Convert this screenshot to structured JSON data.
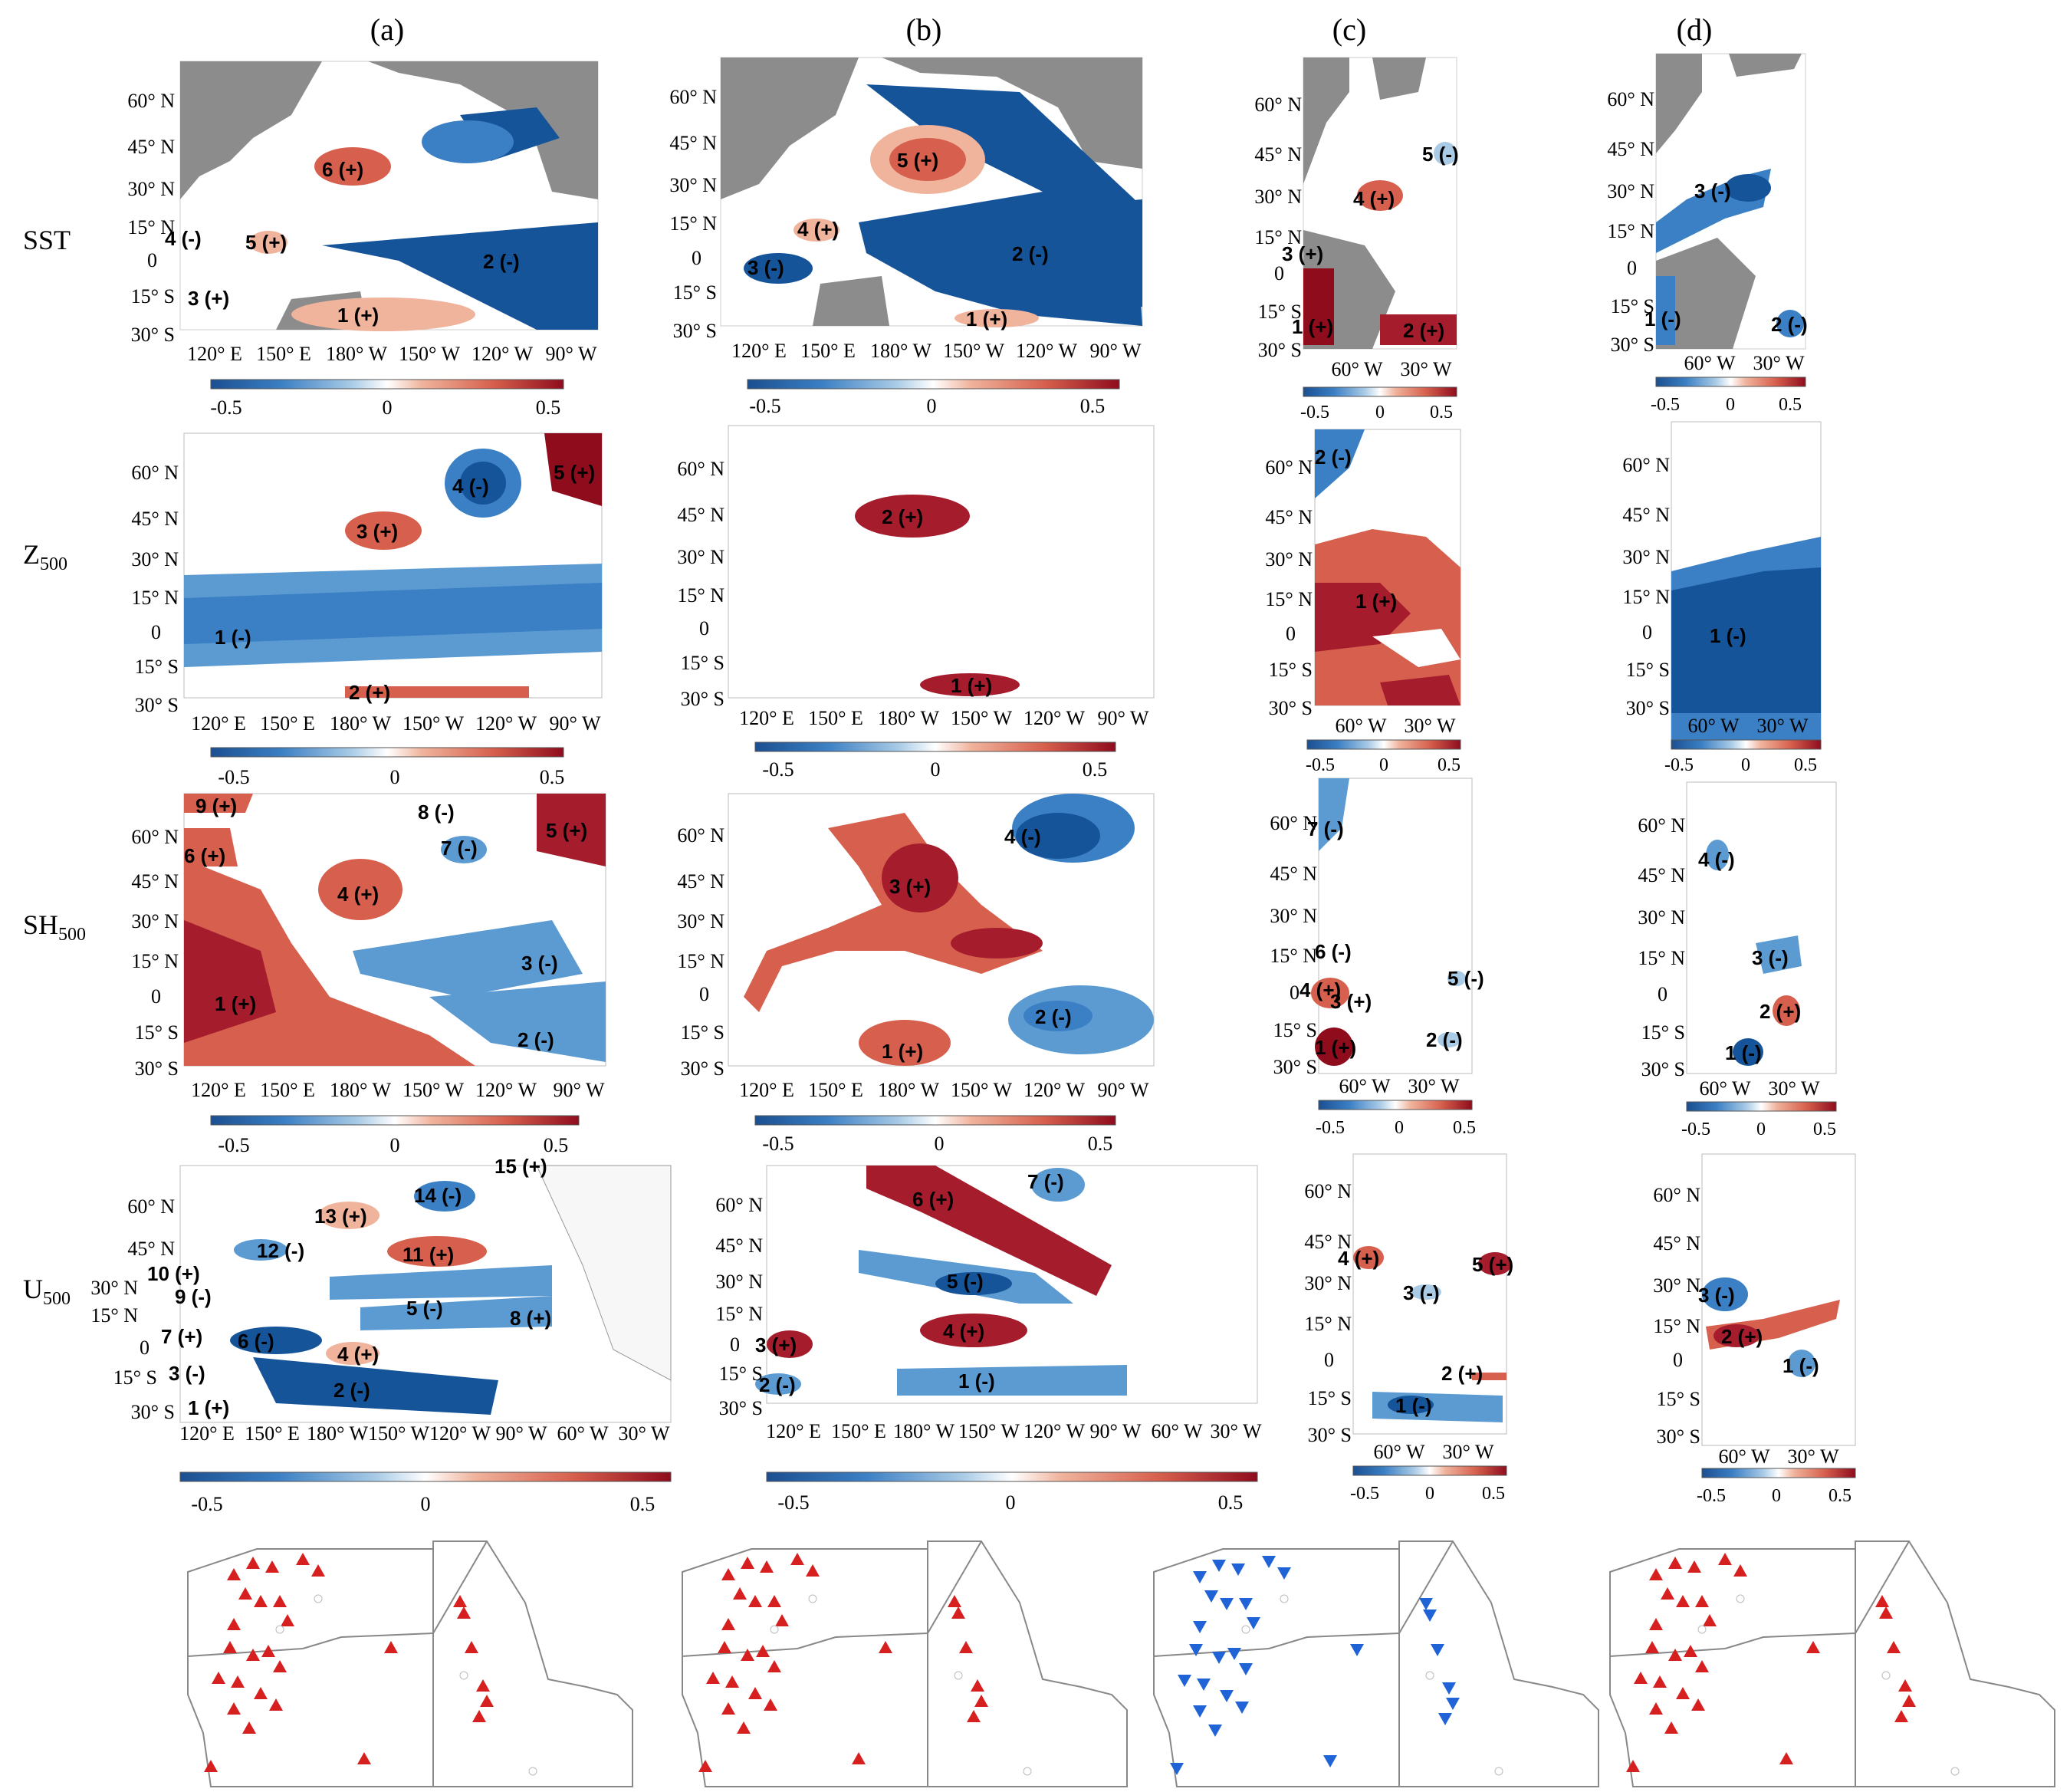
{
  "columns": [
    "(a)",
    "(b)",
    "(c)",
    "(d)"
  ],
  "rows": [
    {
      "main": "SST",
      "sub": ""
    },
    {
      "main": "Z",
      "sub": "500"
    },
    {
      "main": "SH",
      "sub": "500"
    },
    {
      "main": "U",
      "sub": "500"
    }
  ],
  "pacific_lat_labels": [
    "60° N",
    "45° N",
    "30° N",
    "15° N",
    "0",
    "15° S",
    "30° S"
  ],
  "atlantic_lat_labels": [
    "60° N",
    "45° N",
    "30° N",
    "15° N",
    "0",
    "15° S",
    "30° S"
  ],
  "pacific_lon_labels": [
    "120° E",
    "150° E",
    "180° W",
    "150° W",
    "120° W",
    "90° W"
  ],
  "pacific_lon_labels_u500": [
    "120° E",
    "150° E",
    "180° W",
    "150° W",
    "120° W",
    "90° W",
    "60° W",
    "30° W"
  ],
  "atlantic_lon_labels": [
    "60° W",
    "30° W"
  ],
  "colorbar": {
    "min": "-0.5",
    "mid": "0",
    "max": "0.5",
    "neg_color": "#1b4f91",
    "pos_color": "#8f0c1d"
  },
  "regions": {
    "a": {
      "sst": [
        "6 (+)",
        "5 (+)",
        "4 (-)",
        "3 (+)",
        "2 (-)",
        "1 (+)"
      ],
      "z500": [
        "5 (+)",
        "4 (-)",
        "3 (+)",
        "2 (+)",
        "1 (-)"
      ],
      "sh500": [
        "9 (+)",
        "8 (-)",
        "7 (-)",
        "6 (+)",
        "5 (+)",
        "4 (+)",
        "3 (-)",
        "2 (-)",
        "1 (+)"
      ],
      "u500": [
        "15 (+)",
        "14 (-)",
        "13 (+)",
        "12 (-)",
        "11 (+)",
        "10 (+)",
        "9 (-)",
        "8 (+)",
        "7 (+)",
        "6 (-)",
        "5 (-)",
        "4 (+)",
        "3 (-)",
        "2 (-)",
        "1 (+)"
      ]
    },
    "b": {
      "sst": [
        "5 (+)",
        "4 (+)",
        "3 (-)",
        "2 (-)",
        "1 (+)"
      ],
      "z500": [
        "2 (+)",
        "1 (+)"
      ],
      "sh500": [
        "4 (-)",
        "3 (+)",
        "2 (-)",
        "1 (+)"
      ],
      "u500": [
        "7 (-)",
        "6 (+)",
        "5 (-)",
        "4 (+)",
        "3 (+)",
        "2 (-)",
        "1 (-)"
      ]
    },
    "c": {
      "sst": [
        "5 (-)",
        "4 (+)",
        "3 (+)",
        "2 (+)",
        "1 (+)"
      ],
      "z500": [
        "2 (-)",
        "1 (+)"
      ],
      "sh500": [
        "7 (-)",
        "6 (-)",
        "5 (-)",
        "4 (+)",
        "3 (+)",
        "2 (-)",
        "1 (+)"
      ],
      "u500": [
        "5 (+)",
        "4 (+)",
        "3 (-)",
        "2 (+)",
        "1 (-)"
      ]
    },
    "d": {
      "sst": [
        "3 (-)",
        "2 (-)",
        "1 (-)"
      ],
      "z500": [
        "1 (-)"
      ],
      "sh500": [
        "4 (-)",
        "3 (-)",
        "2 (+)",
        "1 (-)"
      ],
      "u500": [
        "3 (-)",
        "2 (+)",
        "1 (-)"
      ]
    }
  },
  "station_maps": {
    "a": {
      "sign": "positive",
      "color": "#d62020"
    },
    "b": {
      "sign": "positive",
      "color": "#d62020"
    },
    "c": {
      "sign": "negative",
      "color": "#1f63d6"
    },
    "d": {
      "sign": "positive",
      "color": "#d62020"
    }
  }
}
